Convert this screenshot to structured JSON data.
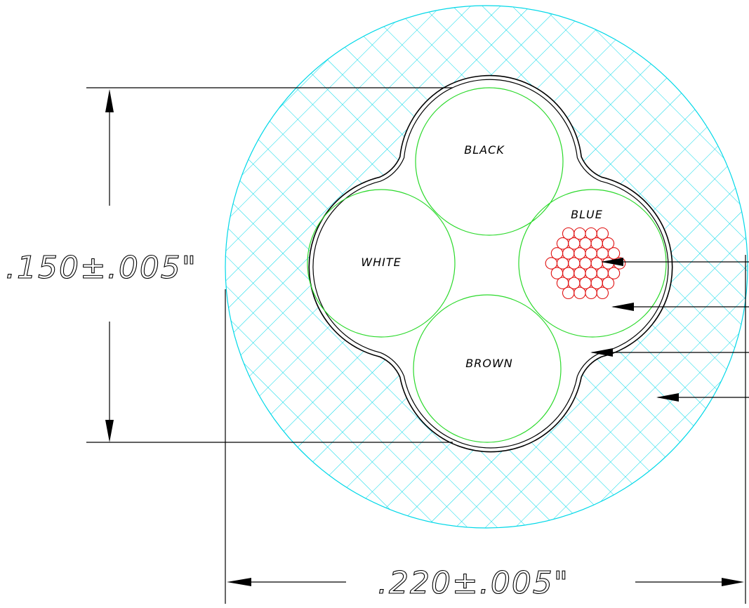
{
  "conductors": {
    "black": {
      "label": "BLACK"
    },
    "white": {
      "label": "WHITE"
    },
    "blue": {
      "label": "BLUE"
    },
    "brown": {
      "label": "BROWN"
    }
  },
  "dimensions": {
    "height": ".150±.005\"",
    "width": ".220±.005\""
  },
  "colors": {
    "jacket_hatch": "#00d8e8",
    "conductor_outline": "#2bd92b",
    "strand_outline": "#e01010",
    "line": "#000000"
  }
}
